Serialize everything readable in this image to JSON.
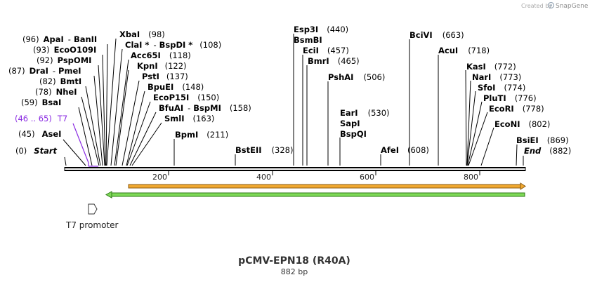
{
  "branding": {
    "created_by": "Created by",
    "product": "SnapGene"
  },
  "plasmid": {
    "name": "pCMV-EPN18 (R40A)",
    "length_label": "882 bp"
  },
  "axis": {
    "ticks": [
      "200",
      "400",
      "600",
      "800"
    ]
  },
  "feature": {
    "promoter_label": "T7 promoter"
  },
  "sites": {
    "start": {
      "pos": "(0)",
      "name": "Start"
    },
    "end": {
      "name": "End",
      "pos": "(882)"
    },
    "ase": {
      "pos": "(45)",
      "name": "AseI"
    },
    "t7": {
      "pos": "(46 .. 65)",
      "name": "T7"
    },
    "bsa": {
      "pos": "(59)",
      "name": "BsaI"
    },
    "nhe": {
      "pos": "(78)",
      "name": "NheI"
    },
    "bmt": {
      "pos": "(82)",
      "name": "BmtI"
    },
    "dra": {
      "pos": "(87)",
      "name": "DraI",
      "sep": "-",
      "name2": "PmeI"
    },
    "psp": {
      "pos": "(92)",
      "name": "PspOMI"
    },
    "eco109": {
      "pos": "(93)",
      "name": "EcoO109I"
    },
    "apa": {
      "pos": "(96)",
      "name": "ApaI",
      "sep": "-",
      "name2": "BanII"
    },
    "xba": {
      "name": "XbaI",
      "pos": "(98)"
    },
    "cla": {
      "name": "ClaI *",
      "sep": "-",
      "name2": "BspDI *",
      "pos": "(108)"
    },
    "acc": {
      "name": "Acc65I",
      "pos": "(118)"
    },
    "kpn": {
      "name": "KpnI",
      "pos": "(122)"
    },
    "pst": {
      "name": "PstI",
      "pos": "(137)"
    },
    "bpue": {
      "name": "BpuEI",
      "pos": "(148)"
    },
    "ecop": {
      "name": "EcoP15I",
      "pos": "(150)"
    },
    "bfua": {
      "name": "BfuAI",
      "sep": "-",
      "name2": "BspMI",
      "pos": "(158)"
    },
    "sml": {
      "name": "SmlI",
      "pos": "(163)"
    },
    "bpm": {
      "name": "BpmI",
      "pos": "(211)"
    },
    "bste": {
      "name": "BstEII",
      "pos": "(328)"
    },
    "esp3": {
      "name": "Esp3I",
      "pos": "(440)"
    },
    "bsmb": {
      "name": "BsmBI"
    },
    "eci": {
      "name": "EciI",
      "pos": "(457)"
    },
    "bmr": {
      "name": "BmrI",
      "pos": "(465)"
    },
    "psha": {
      "name": "PshAI",
      "pos": "(506)"
    },
    "ear": {
      "name": "EarI",
      "pos": "(530)"
    },
    "sap": {
      "name": "SapI"
    },
    "bspq": {
      "name": "BspQI"
    },
    "afe": {
      "name": "AfeI",
      "pos": "(608)"
    },
    "bcivi": {
      "name": "BciVI",
      "pos": "(663)"
    },
    "acu": {
      "name": "AcuI",
      "pos": "(718)"
    },
    "kas": {
      "name": "KasI",
      "pos": "(772)"
    },
    "nar": {
      "name": "NarI",
      "pos": "(773)"
    },
    "sfo": {
      "name": "SfoI",
      "pos": "(774)"
    },
    "plut": {
      "name": "PluTI",
      "pos": "(776)"
    },
    "ecori": {
      "name": "EcoRI",
      "pos": "(778)"
    },
    "econi": {
      "name": "EcoNI",
      "pos": "(802)"
    },
    "bsie": {
      "name": "BsiEI",
      "pos": "(869)"
    }
  }
}
